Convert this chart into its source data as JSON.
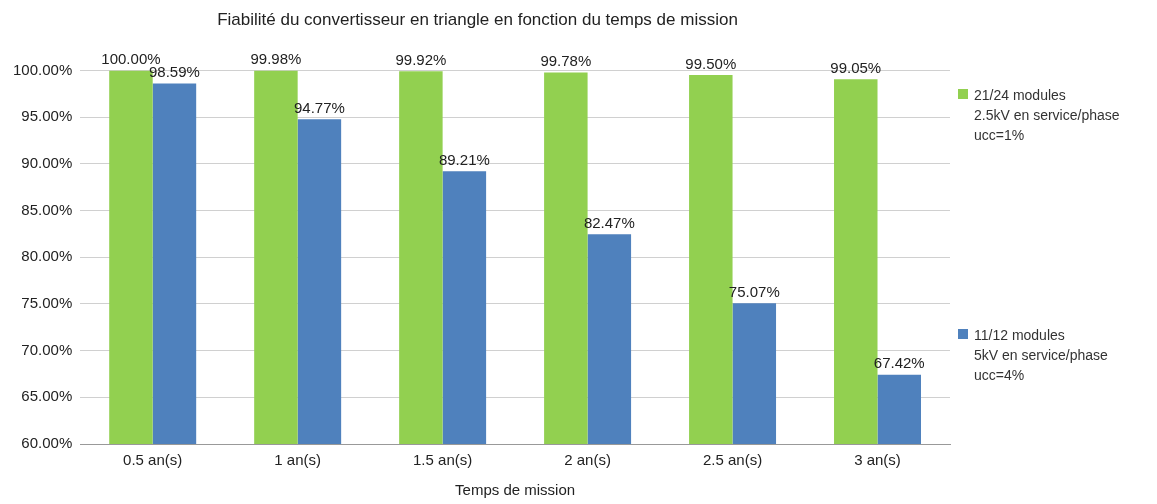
{
  "chart_data": {
    "type": "bar",
    "title": "Fiabilité du convertisseur en triangle en fonction du temps de mission",
    "xlabel": "Temps de mission",
    "categories": [
      "0.5 an(s)",
      "1 an(s)",
      "1.5 an(s)",
      "2 an(s)",
      "2.5 an(s)",
      "3 an(s)"
    ],
    "series": [
      {
        "name": "21/24 modules\n2.5kV en service/phase\nucc=1%",
        "color": "#92d050",
        "values": [
          100.0,
          99.98,
          99.92,
          99.78,
          99.5,
          99.05
        ],
        "value_labels": [
          "100.00%",
          "99.98%",
          "99.92%",
          "99.78%",
          "99.50%",
          "99.05%"
        ]
      },
      {
        "name": "11/12 modules\n5kV en service/phase\nucc=4%",
        "color": "#4f81bd",
        "values": [
          98.59,
          94.77,
          89.21,
          82.47,
          75.07,
          67.42
        ],
        "value_labels": [
          "98.59%",
          "94.77%",
          "89.21%",
          "82.47%",
          "75.07%",
          "67.42%"
        ]
      }
    ],
    "ylim": [
      60,
      100
    ],
    "yticks": [
      {
        "value": 60,
        "label": "60.00%"
      },
      {
        "value": 65,
        "label": "65.00%"
      },
      {
        "value": 70,
        "label": "70.00%"
      },
      {
        "value": 75,
        "label": "75.00%"
      },
      {
        "value": 80,
        "label": "80.00%"
      },
      {
        "value": 85,
        "label": "85.00%"
      },
      {
        "value": 90,
        "label": "90.00%"
      },
      {
        "value": 95,
        "label": "95.00%"
      },
      {
        "value": 100,
        "label": "100.00%"
      }
    ],
    "grid": "y",
    "legend": "right"
  }
}
